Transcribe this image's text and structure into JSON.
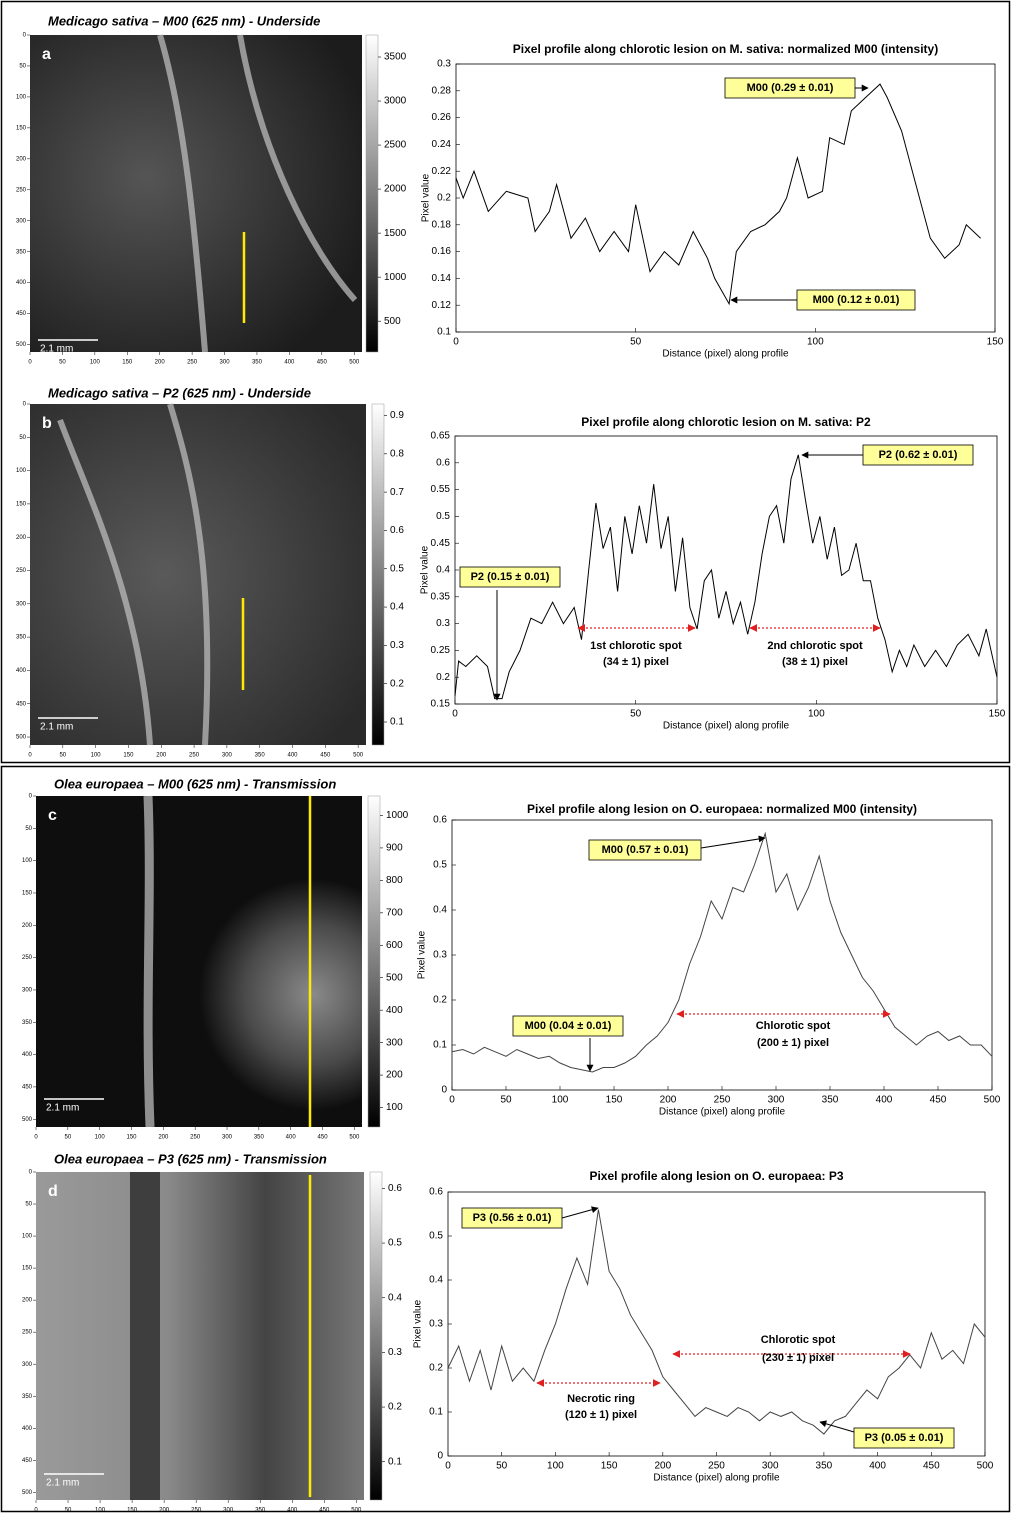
{
  "chart_data": [
    {
      "type": "image",
      "title": "Medicago sativa – M00 (625 nm) - Underside",
      "panel_label": "a",
      "scale_bar_label": "2.1 mm",
      "xlim": [
        0,
        512
      ],
      "xticks": [
        0,
        50,
        100,
        150,
        200,
        250,
        300,
        350,
        400,
        450,
        500
      ],
      "ylim": [
        0,
        512
      ],
      "yticks": [
        0,
        50,
        100,
        150,
        200,
        250,
        300,
        350,
        400,
        450,
        500
      ],
      "colorbar": {
        "lim": [
          150,
          3750
        ],
        "ticks": [
          500,
          1000,
          1500,
          2000,
          2500,
          3000,
          3500
        ]
      }
    },
    {
      "type": "line",
      "title": "Pixel profile along chlorotic lesion on M. sativa: normalized M00 (intensity)",
      "x_label": "Distance (pixel) along profile",
      "y_label": "Pixel value",
      "color": "#000000",
      "x": [
        0,
        2,
        5,
        9,
        14,
        20,
        22,
        26,
        28,
        32,
        36,
        40,
        44,
        48,
        50,
        54,
        58,
        62,
        66,
        70,
        72,
        76,
        78,
        82,
        86,
        90,
        92,
        95,
        98,
        102,
        104,
        108,
        110,
        114,
        118,
        120,
        124,
        128,
        132,
        136,
        140,
        142,
        146
      ],
      "values": [
        0.215,
        0.2,
        0.22,
        0.19,
        0.205,
        0.2,
        0.175,
        0.19,
        0.21,
        0.17,
        0.185,
        0.16,
        0.175,
        0.16,
        0.195,
        0.145,
        0.16,
        0.15,
        0.175,
        0.155,
        0.14,
        0.121,
        0.16,
        0.175,
        0.18,
        0.19,
        0.2,
        0.23,
        0.2,
        0.205,
        0.245,
        0.24,
        0.265,
        0.275,
        0.285,
        0.275,
        0.25,
        0.21,
        0.17,
        0.155,
        0.165,
        0.18,
        0.17
      ],
      "xlim": [
        0,
        150
      ],
      "xticks": [
        0,
        50,
        100,
        150
      ],
      "ylim": [
        0.1,
        0.3
      ],
      "yticks": [
        0.1,
        0.12,
        0.14,
        0.16,
        0.18,
        0.2,
        0.22,
        0.24,
        0.26,
        0.28,
        0.3
      ],
      "annotations": [
        "M00 (0.29 ± 0.01)",
        "M00 (0.12 ± 0.01)"
      ]
    },
    {
      "type": "image",
      "title": "Medicago sativa – P2 (625 nm) - Underside",
      "panel_label": "b",
      "scale_bar_label": "2.1 mm",
      "xlim": [
        0,
        512
      ],
      "xticks": [
        0,
        50,
        100,
        150,
        200,
        250,
        300,
        350,
        400,
        450,
        500
      ],
      "ylim": [
        0,
        512
      ],
      "yticks": [
        0,
        50,
        100,
        150,
        200,
        250,
        300,
        350,
        400,
        450,
        500
      ],
      "colorbar": {
        "lim": [
          0.04,
          0.93
        ],
        "ticks": [
          0.1,
          0.2,
          0.3,
          0.4,
          0.5,
          0.6,
          0.7,
          0.8,
          0.9
        ]
      }
    },
    {
      "type": "line",
      "title": "Pixel profile along chlorotic lesion on M. sativa: P2",
      "x_label": "Distance (pixel) along profile",
      "y_label": "Pixel value",
      "color": "#000000",
      "x": [
        0,
        1,
        3,
        6,
        9,
        11,
        13,
        15,
        18,
        21,
        24,
        27,
        30,
        33,
        35,
        37,
        39,
        41,
        43,
        45,
        47,
        49,
        51,
        53,
        55,
        57,
        59,
        61,
        63,
        65,
        67,
        69,
        71,
        73,
        75,
        77,
        79,
        81,
        83,
        85,
        87,
        89,
        91,
        93,
        95,
        97,
        99,
        101,
        103,
        105,
        107,
        109,
        111,
        113,
        115,
        117,
        119,
        121,
        123,
        125,
        127,
        130,
        133,
        136,
        139,
        142,
        145,
        147,
        150
      ],
      "values": [
        0.165,
        0.23,
        0.22,
        0.24,
        0.22,
        0.16,
        0.16,
        0.21,
        0.25,
        0.31,
        0.3,
        0.34,
        0.3,
        0.33,
        0.27,
        0.4,
        0.525,
        0.44,
        0.48,
        0.36,
        0.5,
        0.43,
        0.52,
        0.45,
        0.56,
        0.44,
        0.5,
        0.36,
        0.46,
        0.33,
        0.29,
        0.38,
        0.4,
        0.31,
        0.36,
        0.3,
        0.34,
        0.28,
        0.34,
        0.43,
        0.5,
        0.52,
        0.45,
        0.57,
        0.615,
        0.53,
        0.45,
        0.5,
        0.42,
        0.48,
        0.39,
        0.4,
        0.45,
        0.38,
        0.38,
        0.31,
        0.27,
        0.21,
        0.25,
        0.22,
        0.26,
        0.22,
        0.25,
        0.22,
        0.26,
        0.28,
        0.24,
        0.29,
        0.2
      ],
      "xlim": [
        0,
        150
      ],
      "xticks": [
        0,
        50,
        100,
        150
      ],
      "ylim": [
        0.15,
        0.65
      ],
      "yticks": [
        0.15,
        0.2,
        0.25,
        0.3,
        0.35,
        0.4,
        0.45,
        0.5,
        0.55,
        0.6,
        0.65
      ],
      "annotations": [
        "P2 (0.62 ± 0.01)",
        "P2 (0.15 ± 0.01)",
        "1st chlorotic spot",
        "(34 ± 1) pixel",
        "2nd chlorotic spot",
        "(38 ± 1) pixel"
      ]
    },
    {
      "type": "image",
      "title": "Olea europaea – M00 (625 nm) - Transmission",
      "panel_label": "c",
      "scale_bar_label": "2.1 mm",
      "xlim": [
        0,
        512
      ],
      "xticks": [
        0,
        50,
        100,
        150,
        200,
        250,
        300,
        350,
        400,
        450,
        500
      ],
      "ylim": [
        0,
        512
      ],
      "yticks": [
        0,
        50,
        100,
        150,
        200,
        250,
        300,
        350,
        400,
        450,
        500
      ],
      "colorbar": {
        "lim": [
          40,
          1060
        ],
        "ticks": [
          100,
          200,
          300,
          400,
          500,
          600,
          700,
          800,
          900,
          1000
        ]
      }
    },
    {
      "type": "line",
      "title": "Pixel profile along lesion on O. europaea: normalized M00 (intensity)",
      "x_label": "Distance (pixel) along profile",
      "y_label": "Pixel value",
      "color": "#444444",
      "x": [
        0,
        10,
        20,
        30,
        40,
        50,
        60,
        70,
        80,
        90,
        100,
        110,
        120,
        130,
        140,
        150,
        160,
        170,
        180,
        190,
        200,
        210,
        220,
        230,
        240,
        250,
        260,
        270,
        280,
        290,
        300,
        310,
        320,
        330,
        340,
        350,
        360,
        370,
        380,
        390,
        400,
        410,
        420,
        430,
        440,
        450,
        460,
        470,
        480,
        490,
        500
      ],
      "values": [
        0.085,
        0.09,
        0.08,
        0.095,
        0.085,
        0.075,
        0.09,
        0.08,
        0.07,
        0.075,
        0.06,
        0.05,
        0.045,
        0.04,
        0.05,
        0.05,
        0.06,
        0.075,
        0.1,
        0.12,
        0.15,
        0.2,
        0.28,
        0.34,
        0.42,
        0.38,
        0.45,
        0.44,
        0.5,
        0.57,
        0.44,
        0.48,
        0.4,
        0.45,
        0.52,
        0.42,
        0.35,
        0.3,
        0.25,
        0.22,
        0.18,
        0.14,
        0.12,
        0.1,
        0.12,
        0.13,
        0.11,
        0.12,
        0.1,
        0.1,
        0.075
      ],
      "xlim": [
        0,
        500
      ],
      "xticks": [
        0,
        50,
        100,
        150,
        200,
        250,
        300,
        350,
        400,
        450,
        500
      ],
      "ylim": [
        0,
        0.6
      ],
      "yticks": [
        0,
        0.1,
        0.2,
        0.3,
        0.4,
        0.5,
        0.6
      ],
      "annotations": [
        "M00 (0.57 ± 0.01)",
        "M00 (0.04 ± 0.01)",
        "Chlorotic spot",
        "(200 ± 1) pixel"
      ]
    },
    {
      "type": "image",
      "title": "Olea europaea – P3 (625 nm) - Transmission",
      "panel_label": "d",
      "scale_bar_label": "2.1 mm",
      "xlim": [
        0,
        512
      ],
      "xticks": [
        0,
        50,
        100,
        150,
        200,
        250,
        300,
        350,
        400,
        450,
        500
      ],
      "ylim": [
        0,
        512
      ],
      "yticks": [
        0,
        50,
        100,
        150,
        200,
        250,
        300,
        350,
        400,
        450,
        500
      ],
      "colorbar": {
        "lim": [
          0.03,
          0.63
        ],
        "ticks": [
          0.1,
          0.2,
          0.3,
          0.4,
          0.5,
          0.6
        ]
      }
    },
    {
      "type": "line",
      "title": "Pixel profile along lesion on O. europaea: P3",
      "x_label": "Distance (pixel) along profile",
      "y_label": "Pixel value",
      "color": "#444444",
      "x": [
        0,
        10,
        20,
        30,
        40,
        50,
        60,
        70,
        80,
        90,
        100,
        110,
        120,
        130,
        140,
        150,
        160,
        170,
        180,
        190,
        200,
        210,
        220,
        230,
        240,
        250,
        260,
        270,
        280,
        290,
        300,
        310,
        320,
        330,
        340,
        350,
        360,
        370,
        380,
        390,
        400,
        410,
        420,
        430,
        440,
        450,
        460,
        470,
        480,
        490,
        500
      ],
      "values": [
        0.2,
        0.25,
        0.17,
        0.24,
        0.15,
        0.25,
        0.17,
        0.2,
        0.17,
        0.24,
        0.3,
        0.38,
        0.45,
        0.39,
        0.56,
        0.42,
        0.38,
        0.32,
        0.28,
        0.24,
        0.18,
        0.15,
        0.12,
        0.09,
        0.11,
        0.1,
        0.09,
        0.11,
        0.1,
        0.08,
        0.1,
        0.09,
        0.1,
        0.08,
        0.07,
        0.05,
        0.08,
        0.09,
        0.12,
        0.15,
        0.13,
        0.18,
        0.2,
        0.23,
        0.2,
        0.28,
        0.22,
        0.24,
        0.21,
        0.3,
        0.27
      ],
      "xlim": [
        0,
        500
      ],
      "xticks": [
        0,
        50,
        100,
        150,
        200,
        250,
        300,
        350,
        400,
        450,
        500
      ],
      "ylim": [
        0,
        0.6
      ],
      "yticks": [
        0,
        0.1,
        0.2,
        0.3,
        0.4,
        0.5,
        0.6
      ],
      "annotations": [
        "P3 (0.56 ± 0.01)",
        "P3 (0.05 ± 0.01)",
        "Chlorotic spot",
        "(230 ± 1) pixel",
        "Necrotic ring",
        "(120 ± 1) pixel"
      ]
    }
  ]
}
